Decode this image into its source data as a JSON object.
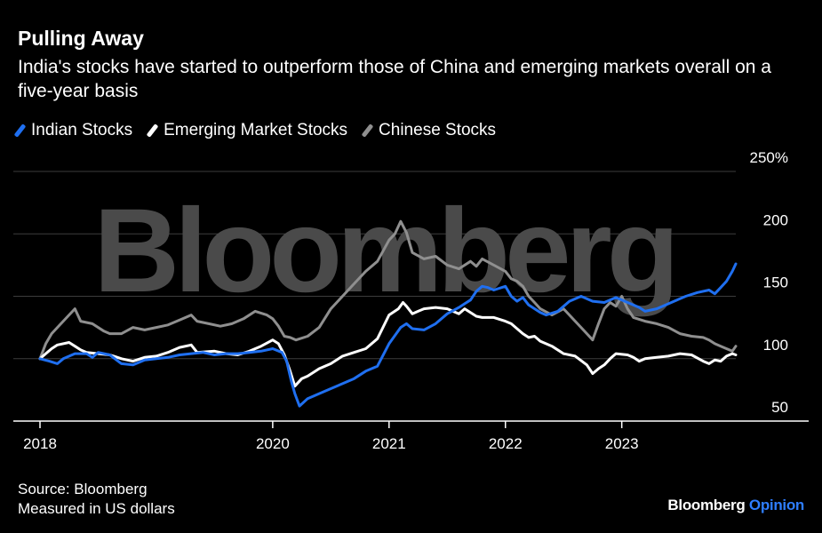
{
  "header": {
    "title": "Pulling Away",
    "subtitle": "India's stocks have started to outperform those of China and emerging markets overall on a five-year basis"
  },
  "footer": {
    "source": "Source: Bloomberg",
    "note": "Measured in US dollars",
    "brand_main": "Bloomberg",
    "brand_accent": "Opinion"
  },
  "watermark": "Bloomberg",
  "colors": {
    "indian": "#1f6ff0",
    "emerging": "#ffffff",
    "chinese": "#8f8f8f",
    "grid": "#3c3c3c",
    "watermark": "#4a4a4a",
    "accent": "#2e7dff"
  },
  "chart_data": {
    "type": "line",
    "title": "Pulling Away",
    "xlabel": "",
    "ylabel": "",
    "xlim": [
      2018.0,
      2023.98
    ],
    "ylim": [
      50,
      250
    ],
    "y_ticks": [
      {
        "value": 50,
        "label": "50"
      },
      {
        "value": 100,
        "label": "100"
      },
      {
        "value": 150,
        "label": "150"
      },
      {
        "value": 200,
        "label": "200"
      },
      {
        "value": 250,
        "label": "250%"
      }
    ],
    "x_ticks": [
      {
        "value": 2018.0,
        "label": "2018"
      },
      {
        "value": 2020.0,
        "label": "2020"
      },
      {
        "value": 2021.0,
        "label": "2021"
      },
      {
        "value": 2022.0,
        "label": "2022"
      },
      {
        "value": 2023.0,
        "label": "2023"
      }
    ],
    "grid": true,
    "legend_position": "top-left",
    "series": [
      {
        "name": "Indian Stocks",
        "color": "#1f6ff0",
        "points": [
          [
            2018.0,
            100
          ],
          [
            2018.08,
            98
          ],
          [
            2018.15,
            96
          ],
          [
            2018.2,
            100
          ],
          [
            2018.3,
            104
          ],
          [
            2018.4,
            104
          ],
          [
            2018.45,
            101
          ],
          [
            2018.5,
            105
          ],
          [
            2018.6,
            103
          ],
          [
            2018.7,
            96
          ],
          [
            2018.8,
            95
          ],
          [
            2018.9,
            99
          ],
          [
            2019.0,
            100
          ],
          [
            2019.1,
            101
          ],
          [
            2019.2,
            103
          ],
          [
            2019.3,
            104
          ],
          [
            2019.4,
            105
          ],
          [
            2019.5,
            103
          ],
          [
            2019.6,
            104
          ],
          [
            2019.7,
            104
          ],
          [
            2019.8,
            105
          ],
          [
            2019.9,
            106
          ],
          [
            2020.0,
            108
          ],
          [
            2020.08,
            105
          ],
          [
            2020.12,
            98
          ],
          [
            2020.16,
            82
          ],
          [
            2020.19,
            72
          ],
          [
            2020.23,
            62
          ],
          [
            2020.3,
            68
          ],
          [
            2020.4,
            72
          ],
          [
            2020.5,
            76
          ],
          [
            2020.6,
            80
          ],
          [
            2020.7,
            84
          ],
          [
            2020.8,
            90
          ],
          [
            2020.9,
            94
          ],
          [
            2021.0,
            112
          ],
          [
            2021.1,
            125
          ],
          [
            2021.15,
            128
          ],
          [
            2021.2,
            124
          ],
          [
            2021.3,
            123
          ],
          [
            2021.4,
            128
          ],
          [
            2021.5,
            136
          ],
          [
            2021.6,
            141
          ],
          [
            2021.65,
            144
          ],
          [
            2021.7,
            147
          ],
          [
            2021.75,
            154
          ],
          [
            2021.8,
            158
          ],
          [
            2021.85,
            157
          ],
          [
            2021.9,
            155
          ],
          [
            2022.0,
            158
          ],
          [
            2022.05,
            150
          ],
          [
            2022.1,
            146
          ],
          [
            2022.15,
            149
          ],
          [
            2022.2,
            143
          ],
          [
            2022.3,
            137
          ],
          [
            2022.35,
            135
          ],
          [
            2022.45,
            138
          ],
          [
            2022.55,
            146
          ],
          [
            2022.65,
            150
          ],
          [
            2022.75,
            146
          ],
          [
            2022.85,
            145
          ],
          [
            2022.95,
            149
          ],
          [
            2023.05,
            145
          ],
          [
            2023.15,
            141
          ],
          [
            2023.2,
            138
          ],
          [
            2023.3,
            140
          ],
          [
            2023.45,
            146
          ],
          [
            2023.55,
            150
          ],
          [
            2023.65,
            153
          ],
          [
            2023.75,
            155
          ],
          [
            2023.8,
            152
          ],
          [
            2023.85,
            157
          ],
          [
            2023.9,
            162
          ],
          [
            2023.95,
            170
          ],
          [
            2023.98,
            176
          ]
        ]
      },
      {
        "name": "Emerging Market Stocks",
        "color": "#ffffff",
        "points": [
          [
            2018.0,
            100
          ],
          [
            2018.05,
            104
          ],
          [
            2018.1,
            108
          ],
          [
            2018.15,
            111
          ],
          [
            2018.25,
            113
          ],
          [
            2018.3,
            110
          ],
          [
            2018.35,
            107
          ],
          [
            2018.4,
            105
          ],
          [
            2018.5,
            104
          ],
          [
            2018.6,
            103
          ],
          [
            2018.7,
            100
          ],
          [
            2018.8,
            98
          ],
          [
            2018.9,
            101
          ],
          [
            2019.0,
            102
          ],
          [
            2019.1,
            105
          ],
          [
            2019.2,
            109
          ],
          [
            2019.3,
            111
          ],
          [
            2019.35,
            105
          ],
          [
            2019.5,
            106
          ],
          [
            2019.6,
            104
          ],
          [
            2019.7,
            103
          ],
          [
            2019.8,
            106
          ],
          [
            2019.9,
            110
          ],
          [
            2020.0,
            115
          ],
          [
            2020.05,
            112
          ],
          [
            2020.1,
            103
          ],
          [
            2020.15,
            90
          ],
          [
            2020.19,
            78
          ],
          [
            2020.25,
            84
          ],
          [
            2020.3,
            86
          ],
          [
            2020.4,
            92
          ],
          [
            2020.5,
            96
          ],
          [
            2020.6,
            102
          ],
          [
            2020.7,
            105
          ],
          [
            2020.8,
            108
          ],
          [
            2020.9,
            116
          ],
          [
            2021.0,
            135
          ],
          [
            2021.08,
            140
          ],
          [
            2021.12,
            145
          ],
          [
            2021.15,
            142
          ],
          [
            2021.2,
            136
          ],
          [
            2021.25,
            138
          ],
          [
            2021.3,
            140
          ],
          [
            2021.4,
            141
          ],
          [
            2021.5,
            140
          ],
          [
            2021.6,
            136
          ],
          [
            2021.65,
            140
          ],
          [
            2021.75,
            134
          ],
          [
            2021.8,
            133
          ],
          [
            2021.9,
            133
          ],
          [
            2022.0,
            130
          ],
          [
            2022.05,
            128
          ],
          [
            2022.15,
            120
          ],
          [
            2022.2,
            117
          ],
          [
            2022.25,
            118
          ],
          [
            2022.3,
            114
          ],
          [
            2022.4,
            110
          ],
          [
            2022.5,
            104
          ],
          [
            2022.6,
            102
          ],
          [
            2022.7,
            95
          ],
          [
            2022.75,
            88
          ],
          [
            2022.8,
            92
          ],
          [
            2022.85,
            95
          ],
          [
            2022.9,
            100
          ],
          [
            2022.95,
            104
          ],
          [
            2023.05,
            103
          ],
          [
            2023.1,
            101
          ],
          [
            2023.15,
            98
          ],
          [
            2023.2,
            100
          ],
          [
            2023.3,
            101
          ],
          [
            2023.4,
            102
          ],
          [
            2023.5,
            104
          ],
          [
            2023.6,
            103
          ],
          [
            2023.7,
            98
          ],
          [
            2023.75,
            96
          ],
          [
            2023.8,
            99
          ],
          [
            2023.85,
            98
          ],
          [
            2023.9,
            102
          ],
          [
            2023.95,
            104
          ],
          [
            2023.98,
            103
          ]
        ]
      },
      {
        "name": "Chinese Stocks",
        "color": "#8f8f8f",
        "points": [
          [
            2018.0,
            100
          ],
          [
            2018.05,
            112
          ],
          [
            2018.1,
            120
          ],
          [
            2018.15,
            125
          ],
          [
            2018.25,
            135
          ],
          [
            2018.3,
            140
          ],
          [
            2018.35,
            130
          ],
          [
            2018.45,
            128
          ],
          [
            2018.55,
            122
          ],
          [
            2018.6,
            120
          ],
          [
            2018.7,
            120
          ],
          [
            2018.8,
            125
          ],
          [
            2018.9,
            123
          ],
          [
            2019.0,
            125
          ],
          [
            2019.1,
            127
          ],
          [
            2019.2,
            131
          ],
          [
            2019.3,
            135
          ],
          [
            2019.35,
            130
          ],
          [
            2019.45,
            128
          ],
          [
            2019.55,
            126
          ],
          [
            2019.65,
            128
          ],
          [
            2019.75,
            132
          ],
          [
            2019.85,
            138
          ],
          [
            2019.95,
            135
          ],
          [
            2020.0,
            132
          ],
          [
            2020.05,
            126
          ],
          [
            2020.1,
            118
          ],
          [
            2020.15,
            117
          ],
          [
            2020.2,
            115
          ],
          [
            2020.3,
            118
          ],
          [
            2020.4,
            125
          ],
          [
            2020.5,
            140
          ],
          [
            2020.6,
            150
          ],
          [
            2020.7,
            160
          ],
          [
            2020.8,
            170
          ],
          [
            2020.9,
            178
          ],
          [
            2021.0,
            195
          ],
          [
            2021.05,
            200
          ],
          [
            2021.1,
            210
          ],
          [
            2021.15,
            201
          ],
          [
            2021.2,
            185
          ],
          [
            2021.3,
            180
          ],
          [
            2021.4,
            182
          ],
          [
            2021.5,
            175
          ],
          [
            2021.6,
            172
          ],
          [
            2021.7,
            178
          ],
          [
            2021.75,
            174
          ],
          [
            2021.8,
            180
          ],
          [
            2021.9,
            175
          ],
          [
            2022.0,
            170
          ],
          [
            2022.05,
            164
          ],
          [
            2022.1,
            162
          ],
          [
            2022.15,
            158
          ],
          [
            2022.2,
            150
          ],
          [
            2022.25,
            145
          ],
          [
            2022.3,
            140
          ],
          [
            2022.4,
            135
          ],
          [
            2022.5,
            140
          ],
          [
            2022.6,
            130
          ],
          [
            2022.7,
            120
          ],
          [
            2022.75,
            115
          ],
          [
            2022.8,
            128
          ],
          [
            2022.85,
            140
          ],
          [
            2022.9,
            145
          ],
          [
            2022.95,
            142
          ],
          [
            2023.0,
            150
          ],
          [
            2023.05,
            140
          ],
          [
            2023.1,
            133
          ],
          [
            2023.2,
            130
          ],
          [
            2023.3,
            128
          ],
          [
            2023.4,
            125
          ],
          [
            2023.5,
            120
          ],
          [
            2023.6,
            118
          ],
          [
            2023.7,
            117
          ],
          [
            2023.75,
            115
          ],
          [
            2023.8,
            112
          ],
          [
            2023.85,
            110
          ],
          [
            2023.9,
            108
          ],
          [
            2023.95,
            106
          ],
          [
            2023.98,
            110
          ]
        ]
      }
    ]
  }
}
